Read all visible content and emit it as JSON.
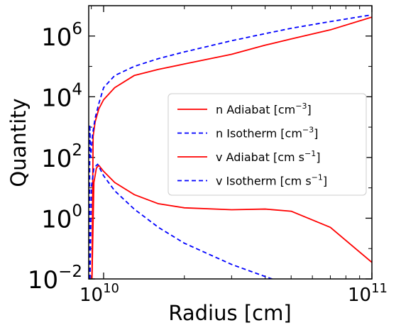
{
  "chart_data": {
    "type": "line",
    "xlabel": "Radius [cm]",
    "ylabel": "Quantity",
    "xscale": "log",
    "yscale": "log",
    "xlim": [
      8800000000.0,
      100000000000.0
    ],
    "ylim": [
      0.01,
      10000000.0
    ],
    "x_ticks": [
      {
        "value": 10000000000.0,
        "base": "10",
        "exp": "10"
      },
      {
        "value": 100000000000.0,
        "base": "10",
        "exp": "11"
      }
    ],
    "y_ticks": [
      {
        "value": 0.01,
        "base": "10",
        "exp": "−2"
      },
      {
        "value": 1,
        "base": "10",
        "exp": "0"
      },
      {
        "value": 100,
        "base": "10",
        "exp": "2"
      },
      {
        "value": 10000,
        "base": "10",
        "exp": "4"
      },
      {
        "value": 1000000,
        "base": "10",
        "exp": "6"
      }
    ],
    "legend_position": "center-right",
    "series": [
      {
        "name": "n Adiabat [cm−3]",
        "legend_main": "n Adiabat ",
        "legend_unit_parts": [
          "[cm",
          "−3",
          "]"
        ],
        "color": "#ff0000",
        "dash": "solid",
        "points": [
          [
            9050000000.0,
            0.01
          ],
          [
            9120000000.0,
            50
          ],
          [
            9140000000.0,
            500
          ],
          [
            9300000000.0,
            1500
          ],
          [
            9600000000.0,
            4000
          ],
          [
            10000000000.0,
            8000
          ],
          [
            11000000000.0,
            20000
          ],
          [
            13000000000.0,
            50000
          ],
          [
            16000000000.0,
            80000
          ],
          [
            20000000000.0,
            120000
          ],
          [
            30000000000.0,
            250000
          ],
          [
            40000000000.0,
            500000
          ],
          [
            50000000000.0,
            800000
          ],
          [
            70000000000.0,
            1600000
          ],
          [
            100000000000.0,
            4200000
          ]
        ]
      },
      {
        "name": "n Isotherm [cm−3]",
        "legend_main": "n Isotherm ",
        "legend_unit_parts": [
          "[cm",
          "−3",
          "]"
        ],
        "color": "#0000ff",
        "dash": "dashed",
        "points": [
          [
            8850000000.0,
            0.01
          ],
          [
            8880000000.0,
            1200
          ],
          [
            8950000000.0,
            100
          ],
          [
            9100000000.0,
            600
          ],
          [
            9300000000.0,
            2000
          ],
          [
            9600000000.0,
            6000
          ],
          [
            10000000000.0,
            20000
          ],
          [
            11000000000.0,
            50000
          ],
          [
            13000000000.0,
            100000
          ],
          [
            16000000000.0,
            180000
          ],
          [
            20000000000.0,
            300000
          ],
          [
            30000000000.0,
            700000
          ],
          [
            40000000000.0,
            1200000
          ],
          [
            50000000000.0,
            1800000
          ],
          [
            70000000000.0,
            3000000
          ],
          [
            100000000000.0,
            5000000
          ]
        ]
      },
      {
        "name": "v Adiabat [cm s−1]",
        "legend_main": "v Adiabat ",
        "legend_unit_parts": [
          "[cm s",
          "−1",
          "]"
        ],
        "color": "#ff0000",
        "dash": "solid",
        "points": [
          [
            9050000000.0,
            0.01
          ],
          [
            9200000000.0,
            15
          ],
          [
            9400000000.0,
            45
          ],
          [
            9600000000.0,
            55
          ],
          [
            10000000000.0,
            35
          ],
          [
            11000000000.0,
            15
          ],
          [
            13000000000.0,
            6
          ],
          [
            16000000000.0,
            3
          ],
          [
            20000000000.0,
            2.2
          ],
          [
            30000000000.0,
            1.9
          ],
          [
            40000000000.0,
            2.0
          ],
          [
            50000000000.0,
            1.7
          ],
          [
            70000000000.0,
            0.5
          ],
          [
            100000000000.0,
            0.035
          ]
        ]
      },
      {
        "name": "v Isotherm [cm s−1]",
        "legend_main": "v Isotherm ",
        "legend_unit_parts": [
          "[cm s",
          "−1",
          "]"
        ],
        "color": "#0000ff",
        "dash": "dashed",
        "points": [
          [
            8900000000.0,
            0.01
          ],
          [
            9000000000.0,
            10
          ],
          [
            9200000000.0,
            45
          ],
          [
            9500000000.0,
            60
          ],
          [
            10000000000.0,
            25
          ],
          [
            11000000000.0,
            8
          ],
          [
            13000000000.0,
            2
          ],
          [
            16000000000.0,
            0.5
          ],
          [
            20000000000.0,
            0.15
          ],
          [
            30000000000.0,
            0.03
          ],
          [
            40000000000.0,
            0.012
          ],
          [
            50000000000.0,
            0.006
          ]
        ]
      }
    ]
  }
}
